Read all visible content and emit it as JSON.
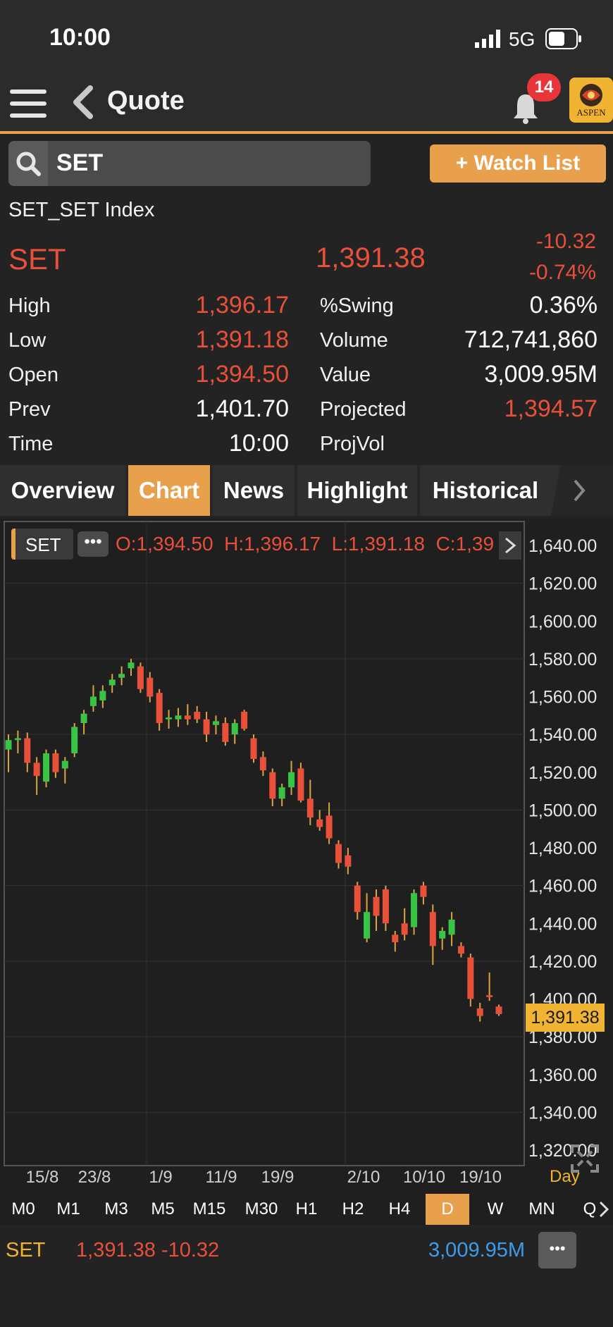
{
  "status": {
    "time": "10:00",
    "network": "5G"
  },
  "header": {
    "title": "Quote",
    "notifications": "14",
    "logo_text": "ASPEN"
  },
  "search": {
    "value": "SET",
    "watch_label": "+ Watch List"
  },
  "quote": {
    "name": "SET_SET Index",
    "symbol": "SET",
    "last": "1,391.38",
    "change": "-10.32",
    "change_pct": "-0.74%",
    "stats": [
      {
        "label": "High",
        "value": "1,396.17",
        "color": "red"
      },
      {
        "label": "Low",
        "value": "1,391.18",
        "color": "red"
      },
      {
        "label": "Open",
        "value": "1,394.50",
        "color": "red"
      },
      {
        "label": "Prev",
        "value": "1,401.70",
        "color": "white"
      },
      {
        "label": "Time",
        "value": "10:00",
        "color": "white"
      }
    ],
    "stats2": [
      {
        "label": "%Swing",
        "value": "0.36%",
        "color": "white"
      },
      {
        "label": "Volume",
        "value": "712,741,860",
        "color": "white"
      },
      {
        "label": "Value",
        "value": "3,009.95M",
        "color": "white"
      },
      {
        "label": "Projected",
        "value": "1,394.57",
        "color": "red"
      },
      {
        "label": "ProjVol",
        "value": "",
        "color": "white"
      }
    ]
  },
  "tabs": [
    {
      "label": "Overview",
      "active": false
    },
    {
      "label": "Chart",
      "active": true
    },
    {
      "label": "News",
      "active": false
    },
    {
      "label": "Highlight",
      "active": false
    },
    {
      "label": "Historical",
      "active": false
    }
  ],
  "chart_header": {
    "symbol": "SET",
    "ohlc": "O:1,394.50  H:1,396.17  L:1,391.18  C:1,39"
  },
  "chart_data": {
    "type": "candlestick",
    "y_ticks": [
      "1,640.00",
      "1,620.00",
      "1,600.00",
      "1,580.00",
      "1,560.00",
      "1,540.00",
      "1,520.00",
      "1,500.00",
      "1,480.00",
      "1,460.00",
      "1,440.00",
      "1,420.00",
      "1,400.00",
      "1,380.00",
      "1,360.00",
      "1,340.00",
      "1,320.00"
    ],
    "ylim": [
      1320,
      1640
    ],
    "current_price": "1,391.38",
    "x_labels": [
      "15/8",
      "23/8",
      "1/9",
      "11/9",
      "19/9",
      "2/10",
      "10/10",
      "19/10"
    ],
    "period_label": "Day",
    "candles": [
      {
        "o": 1532,
        "h": 1540,
        "l": 1520,
        "c": 1537
      },
      {
        "o": 1537,
        "h": 1542,
        "l": 1530,
        "c": 1538
      },
      {
        "o": 1538,
        "h": 1541,
        "l": 1520,
        "c": 1525
      },
      {
        "o": 1525,
        "h": 1528,
        "l": 1508,
        "c": 1518
      },
      {
        "o": 1515,
        "h": 1532,
        "l": 1512,
        "c": 1530
      },
      {
        "o": 1530,
        "h": 1532,
        "l": 1517,
        "c": 1520
      },
      {
        "o": 1522,
        "h": 1528,
        "l": 1514,
        "c": 1526
      },
      {
        "o": 1530,
        "h": 1546,
        "l": 1528,
        "c": 1544
      },
      {
        "o": 1546,
        "h": 1553,
        "l": 1540,
        "c": 1551
      },
      {
        "o": 1555,
        "h": 1566,
        "l": 1552,
        "c": 1560
      },
      {
        "o": 1558,
        "h": 1566,
        "l": 1554,
        "c": 1563
      },
      {
        "o": 1566,
        "h": 1572,
        "l": 1562,
        "c": 1569
      },
      {
        "o": 1570,
        "h": 1576,
        "l": 1566,
        "c": 1572
      },
      {
        "o": 1575,
        "h": 1580,
        "l": 1571,
        "c": 1578
      },
      {
        "o": 1576,
        "h": 1578,
        "l": 1562,
        "c": 1564
      },
      {
        "o": 1570,
        "h": 1573,
        "l": 1557,
        "c": 1560
      },
      {
        "o": 1562,
        "h": 1564,
        "l": 1542,
        "c": 1546
      },
      {
        "o": 1548,
        "h": 1553,
        "l": 1543,
        "c": 1549
      },
      {
        "o": 1548,
        "h": 1554,
        "l": 1544,
        "c": 1550
      },
      {
        "o": 1550,
        "h": 1556,
        "l": 1545,
        "c": 1548
      },
      {
        "o": 1552,
        "h": 1555,
        "l": 1546,
        "c": 1548
      },
      {
        "o": 1548,
        "h": 1552,
        "l": 1536,
        "c": 1540
      },
      {
        "o": 1545,
        "h": 1550,
        "l": 1540,
        "c": 1547
      },
      {
        "o": 1546,
        "h": 1549,
        "l": 1534,
        "c": 1536
      },
      {
        "o": 1540,
        "h": 1548,
        "l": 1535,
        "c": 1546
      },
      {
        "o": 1552,
        "h": 1553,
        "l": 1542,
        "c": 1543
      },
      {
        "o": 1538,
        "h": 1540,
        "l": 1525,
        "c": 1527
      },
      {
        "o": 1528,
        "h": 1531,
        "l": 1518,
        "c": 1521
      },
      {
        "o": 1520,
        "h": 1522,
        "l": 1502,
        "c": 1506
      },
      {
        "o": 1506,
        "h": 1514,
        "l": 1502,
        "c": 1512
      },
      {
        "o": 1512,
        "h": 1526,
        "l": 1508,
        "c": 1520
      },
      {
        "o": 1522,
        "h": 1525,
        "l": 1504,
        "c": 1505
      },
      {
        "o": 1506,
        "h": 1516,
        "l": 1492,
        "c": 1496
      },
      {
        "o": 1495,
        "h": 1500,
        "l": 1489,
        "c": 1491
      },
      {
        "o": 1497,
        "h": 1504,
        "l": 1482,
        "c": 1485
      },
      {
        "o": 1482,
        "h": 1484,
        "l": 1469,
        "c": 1472
      },
      {
        "o": 1476,
        "h": 1480,
        "l": 1466,
        "c": 1470
      },
      {
        "o": 1460,
        "h": 1462,
        "l": 1442,
        "c": 1446
      },
      {
        "o": 1432,
        "h": 1456,
        "l": 1430,
        "c": 1446
      },
      {
        "o": 1454,
        "h": 1458,
        "l": 1436,
        "c": 1444
      },
      {
        "o": 1458,
        "h": 1460,
        "l": 1436,
        "c": 1440
      },
      {
        "o": 1434,
        "h": 1436,
        "l": 1425,
        "c": 1430
      },
      {
        "o": 1440,
        "h": 1448,
        "l": 1431,
        "c": 1434
      },
      {
        "o": 1438,
        "h": 1458,
        "l": 1434,
        "c": 1456
      },
      {
        "o": 1460,
        "h": 1462,
        "l": 1450,
        "c": 1454
      },
      {
        "o": 1446,
        "h": 1450,
        "l": 1418,
        "c": 1428
      },
      {
        "o": 1432,
        "h": 1438,
        "l": 1426,
        "c": 1436
      },
      {
        "o": 1434,
        "h": 1446,
        "l": 1428,
        "c": 1442
      },
      {
        "o": 1428,
        "h": 1430,
        "l": 1422,
        "c": 1424
      },
      {
        "o": 1422,
        "h": 1424,
        "l": 1396,
        "c": 1400
      },
      {
        "o": 1395,
        "h": 1398,
        "l": 1388,
        "c": 1391
      },
      {
        "o": 1402,
        "h": 1414,
        "l": 1399,
        "c": 1401
      },
      {
        "o": 1396,
        "h": 1397,
        "l": 1391,
        "c": 1392
      }
    ]
  },
  "timeframes": [
    {
      "label": "M0",
      "active": false
    },
    {
      "label": "M1",
      "active": false
    },
    {
      "label": "M3",
      "active": false
    },
    {
      "label": "M5",
      "active": false
    },
    {
      "label": "M15",
      "active": false
    },
    {
      "label": "M30",
      "active": false
    },
    {
      "label": "H1",
      "active": false
    },
    {
      "label": "H2",
      "active": false
    },
    {
      "label": "H4",
      "active": false
    },
    {
      "label": "D",
      "active": true
    },
    {
      "label": "W",
      "active": false
    },
    {
      "label": "MN",
      "active": false
    },
    {
      "label": "Q",
      "active": false
    }
  ],
  "ticker": {
    "symbol": "SET",
    "price_change": "1,391.38 -10.32",
    "value": "3,009.95M"
  },
  "colors": {
    "accent": "#e8a04c",
    "down": "#e8503a",
    "up": "#38c545",
    "value_blue": "#3d9be9"
  }
}
